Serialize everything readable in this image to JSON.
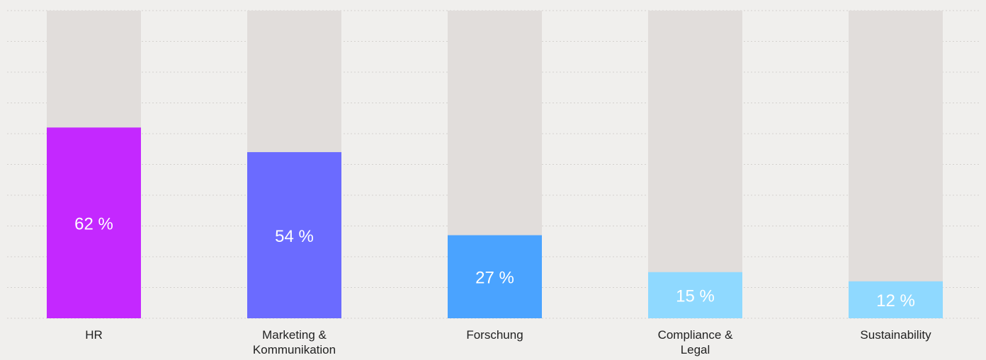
{
  "chart_data": {
    "type": "bar",
    "categories": [
      "HR",
      "Marketing & Kommunikation",
      "Forschung",
      "Compliance & Legal",
      "Sustainability"
    ],
    "values": [
      62,
      54,
      27,
      15,
      12
    ],
    "value_labels": [
      "62 %",
      "54 %",
      "27 %",
      "15 %",
      "12 %"
    ],
    "colors": [
      "#c428ff",
      "#6b6bff",
      "#4aa3ff",
      "#8fd9ff",
      "#8fd9ff"
    ],
    "track_color": "#e1dddb",
    "ylim": [
      0,
      100
    ],
    "yticks": [
      0,
      10,
      20,
      30,
      40,
      50,
      60,
      70,
      80,
      90,
      100
    ],
    "grid": true
  }
}
